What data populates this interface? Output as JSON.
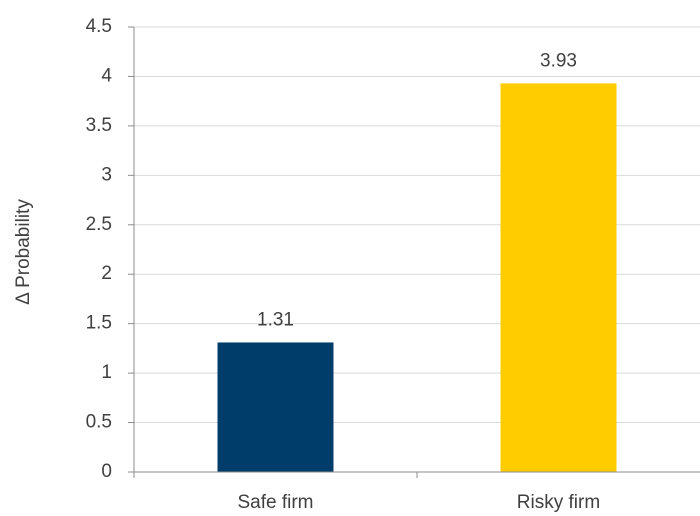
{
  "chart_data": {
    "type": "bar",
    "title": "",
    "xlabel": "",
    "ylabel": "Δ Probability",
    "categories": [
      "Safe firm",
      "Risky firm"
    ],
    "values": [
      1.31,
      3.93
    ],
    "data_labels": [
      "1.31",
      "3.93"
    ],
    "bar_colors": [
      "#003d6b",
      "#ffcc00"
    ],
    "ylim": [
      0,
      4.5
    ],
    "y_ticks": [
      "0",
      "0.5",
      "1",
      "1.5",
      "2",
      "2.5",
      "3",
      "3.5",
      "4",
      "4.5"
    ],
    "y_tick_values": [
      0,
      0.5,
      1,
      1.5,
      2,
      2.5,
      3,
      3.5,
      4,
      4.5
    ],
    "grid": true,
    "legend": "none"
  }
}
